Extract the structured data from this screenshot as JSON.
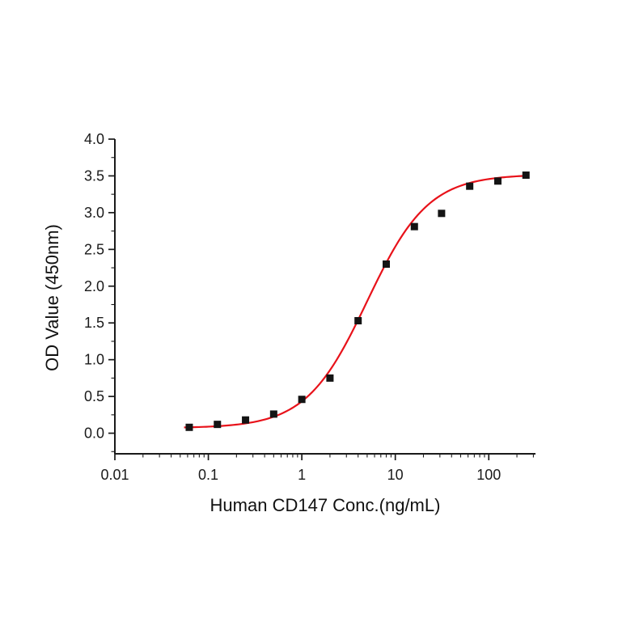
{
  "chart_data": {
    "type": "scatter",
    "subtype": "dose-response-4PL",
    "title": "",
    "xlabel": "Human CD147 Conc.(ng/mL)",
    "ylabel": "OD Value (450nm)",
    "x_scale": "log",
    "y_scale": "linear",
    "xlim": [
      0.01,
      316
    ],
    "ylim": [
      -0.28,
      4.0
    ],
    "grid": "off",
    "legend": "none",
    "x_ticks": [
      {
        "value": 0.01,
        "label": "0.01"
      },
      {
        "value": 0.1,
        "label": "0.1"
      },
      {
        "value": 1,
        "label": "1"
      },
      {
        "value": 10,
        "label": "10"
      },
      {
        "value": 100,
        "label": "100"
      }
    ],
    "y_ticks": [
      {
        "value": 0.0,
        "label": "0.0"
      },
      {
        "value": 0.5,
        "label": "0.5"
      },
      {
        "value": 1.0,
        "label": "1.0"
      },
      {
        "value": 1.5,
        "label": "1.5"
      },
      {
        "value": 2.0,
        "label": "2.0"
      },
      {
        "value": 2.5,
        "label": "2.5"
      },
      {
        "value": 3.0,
        "label": "3.0"
      },
      {
        "value": 3.5,
        "label": "3.5"
      },
      {
        "value": 4.0,
        "label": "4.0"
      }
    ],
    "points": [
      {
        "x": 0.0625,
        "y": 0.08
      },
      {
        "x": 0.125,
        "y": 0.12
      },
      {
        "x": 0.25,
        "y": 0.18
      },
      {
        "x": 0.5,
        "y": 0.26
      },
      {
        "x": 1,
        "y": 0.46
      },
      {
        "x": 2,
        "y": 0.75
      },
      {
        "x": 4,
        "y": 1.53
      },
      {
        "x": 8,
        "y": 2.3
      },
      {
        "x": 16,
        "y": 2.81
      },
      {
        "x": 31.25,
        "y": 2.99
      },
      {
        "x": 62.5,
        "y": 3.36
      },
      {
        "x": 125,
        "y": 3.43
      },
      {
        "x": 250,
        "y": 3.51
      }
    ],
    "fit_curve": {
      "model": "4PL",
      "bottom": 0.07,
      "top": 3.52,
      "ec50": 5.0,
      "hill": 1.33,
      "x_start": 0.055,
      "x_end": 268
    },
    "colors": {
      "axis": "#1a1a1a",
      "text": "#1a1a1a",
      "curve": "#e8121a",
      "marker": "#141414",
      "background": "#ffffff"
    }
  }
}
